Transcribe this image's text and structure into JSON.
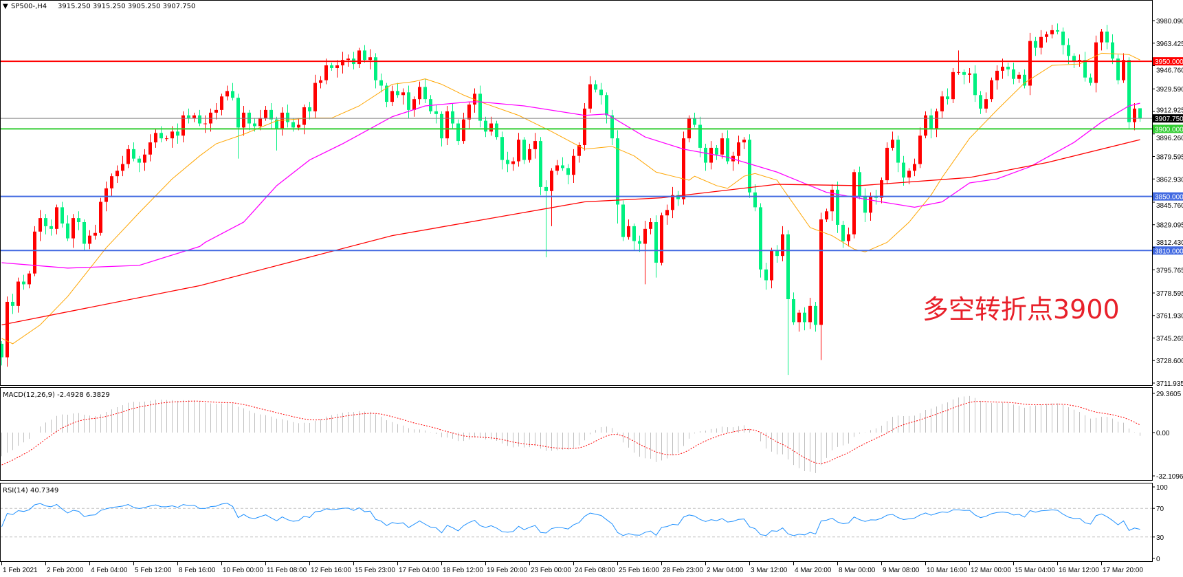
{
  "header": {
    "dropdown_icon": "triangle-down-icon",
    "symbol": "SP500-,H4",
    "ohlc_text": "3915.250 3915.250 3905.250 3907.750",
    "ohlc": [
      3915.25,
      3915.25,
      3905.25,
      3907.75
    ]
  },
  "annotation": "多空转折点3900",
  "colors": {
    "up_candle": "#ff0000",
    "down_candle": "#00f080",
    "ma_fast": "#ffa500",
    "ma_mid": "#ff00ff",
    "ma_slow": "#ff0000",
    "macd_hist": "#c0c0c0",
    "macd_signal": "#ff0000",
    "rsi": "#1e90ff",
    "annotation": "#e8202a"
  },
  "chart_data": {
    "type": "candlestick",
    "timeframe": "H4",
    "first_open": 3741,
    "closes": [
      3731,
      3772,
      3769,
      3787,
      3785,
      3793,
      3824,
      3834,
      3828,
      3826,
      3842,
      3830,
      3819,
      3834,
      3831,
      3815,
      3821,
      3823,
      3846,
      3856,
      3865,
      3869,
      3874,
      3885,
      3878,
      3875,
      3881,
      3890,
      3897,
      3893,
      3893,
      3898,
      3895,
      3910,
      3908,
      3910,
      3904,
      3904,
      3912,
      3914,
      3924,
      3928,
      3923,
      3901,
      3912,
      3904,
      3902,
      3908,
      3914,
      3907,
      3900,
      3912,
      3905,
      3901,
      3903,
      3916,
      3913,
      3934,
      3936,
      3947,
      3945,
      3947,
      3951,
      3952,
      3948,
      3958,
      3951,
      3953,
      3936,
      3932,
      3920,
      3928,
      3925,
      3927,
      3914,
      3922,
      3931,
      3922,
      3913,
      3911,
      3893,
      3913,
      3904,
      3891,
      3907,
      3918,
      3926,
      3906,
      3898,
      3904,
      3894,
      3877,
      3874,
      3876,
      3892,
      3877,
      3885,
      3891,
      3857,
      3854,
      3869,
      3873,
      3871,
      3866,
      3880,
      3888,
      3915,
      3933,
      3929,
      3925,
      3910,
      3893,
      3844,
      3820,
      3828,
      3817,
      3815,
      3826,
      3831,
      3801,
      3836,
      3840,
      3851,
      3848,
      3893,
      3908,
      3903,
      3886,
      3875,
      3886,
      3881,
      3893,
      3876,
      3880,
      3890,
      3892,
      3853,
      3842,
      3796,
      3788,
      3810,
      3806,
      3822,
      3774,
      3757,
      3764,
      3757,
      3769,
      3755,
      3833,
      3839,
      3855,
      3829,
      3817,
      3822,
      3868,
      3850,
      3838,
      3850,
      3849,
      3862,
      3886,
      3892,
      3875,
      3864,
      3869,
      3874,
      3895,
      3910,
      3900,
      3913,
      3924,
      3922,
      3942,
      3942,
      3940,
      3941,
      3925,
      3915,
      3922,
      3936,
      3943,
      3946,
      3944,
      3937,
      3940,
      3932,
      3965,
      3960,
      3968,
      3970,
      3973,
      3972,
      3962,
      3954,
      3950,
      3951,
      3938,
      3934,
      3964,
      3972,
      3964,
      3952,
      3936,
      3951,
      3905,
      3915,
      3907.75
    ],
    "wick_extremes": [
      {
        "bar": 0,
        "low": 3725
      },
      {
        "bar": 43,
        "low": 3878
      },
      {
        "bar": 50,
        "low": 3884
      },
      {
        "bar": 99,
        "low": 3805
      },
      {
        "bar": 100,
        "low": 3828
      },
      {
        "bar": 112,
        "low": 3830
      },
      {
        "bar": 117,
        "low": 3785
      },
      {
        "bar": 119,
        "low": 3790
      },
      {
        "bar": 138,
        "low": 3790
      },
      {
        "bar": 143,
        "low": 3718
      },
      {
        "bar": 149,
        "low": 3729
      },
      {
        "bar": 148,
        "low": 3750
      },
      {
        "bar": 174,
        "high": 3958
      },
      {
        "bar": 192,
        "high": 3978
      },
      {
        "bar": 201,
        "high": 3977
      },
      {
        "bar": 205,
        "low": 3900
      }
    ],
    "moving_averages": [
      {
        "role": "fast",
        "points": [
          [
            0,
            3745
          ],
          [
            2,
            3741
          ],
          [
            7,
            3755
          ],
          [
            12,
            3776
          ],
          [
            19,
            3812
          ],
          [
            25,
            3838
          ],
          [
            31,
            3863
          ],
          [
            36,
            3880
          ],
          [
            39,
            3889
          ],
          [
            44,
            3896
          ],
          [
            50,
            3906
          ],
          [
            56,
            3908
          ],
          [
            60,
            3908
          ],
          [
            65,
            3917
          ],
          [
            71,
            3933
          ],
          [
            75,
            3935
          ],
          [
            77,
            3937
          ],
          [
            80,
            3933
          ],
          [
            84,
            3925
          ],
          [
            87,
            3920
          ],
          [
            94,
            3910
          ],
          [
            100,
            3898
          ],
          [
            106,
            3885
          ],
          [
            111,
            3887
          ],
          [
            115,
            3880
          ],
          [
            119,
            3868
          ],
          [
            122,
            3865
          ],
          [
            125,
            3862
          ],
          [
            126,
            3865
          ],
          [
            130,
            3858
          ],
          [
            132,
            3856
          ],
          [
            135,
            3865
          ],
          [
            137,
            3867
          ],
          [
            141,
            3862
          ],
          [
            142,
            3856
          ],
          [
            147,
            3827
          ],
          [
            151,
            3821
          ],
          [
            155,
            3811
          ],
          [
            157,
            3809
          ],
          [
            161,
            3816
          ],
          [
            165,
            3831
          ],
          [
            169,
            3851
          ],
          [
            171,
            3864
          ],
          [
            176,
            3893
          ],
          [
            181,
            3914
          ],
          [
            186,
            3934
          ],
          [
            191,
            3947
          ],
          [
            196,
            3948
          ],
          [
            200,
            3956
          ],
          [
            205,
            3955
          ],
          [
            207,
            3951
          ]
        ]
      },
      {
        "role": "mid",
        "points": [
          [
            0,
            3801
          ],
          [
            12,
            3797
          ],
          [
            25,
            3799
          ],
          [
            36,
            3813
          ],
          [
            37,
            3816
          ],
          [
            44,
            3831
          ],
          [
            50,
            3858
          ],
          [
            56,
            3877
          ],
          [
            62,
            3889
          ],
          [
            71,
            3909
          ],
          [
            77,
            3917
          ],
          [
            85,
            3920
          ],
          [
            87,
            3920
          ],
          [
            95,
            3917
          ],
          [
            106,
            3910
          ],
          [
            110,
            3911
          ],
          [
            117,
            3894
          ],
          [
            124,
            3885
          ],
          [
            132,
            3879
          ],
          [
            141,
            3868
          ],
          [
            147,
            3858
          ],
          [
            150,
            3853
          ],
          [
            157,
            3848
          ],
          [
            166,
            3842
          ],
          [
            171,
            3846
          ],
          [
            176,
            3860
          ],
          [
            181,
            3863
          ],
          [
            187,
            3872
          ],
          [
            195,
            3890
          ],
          [
            200,
            3905
          ],
          [
            205,
            3917
          ],
          [
            207,
            3919
          ]
        ]
      },
      {
        "role": "slow",
        "points": [
          [
            0,
            3755
          ],
          [
            36,
            3784
          ],
          [
            71,
            3821
          ],
          [
            106,
            3846
          ],
          [
            120,
            3849
          ],
          [
            141,
            3859
          ],
          [
            156,
            3858
          ],
          [
            176,
            3864
          ],
          [
            190,
            3875
          ],
          [
            207,
            3892
          ]
        ]
      }
    ],
    "horizontal_levels": [
      {
        "price": 3950,
        "label": "3950.000",
        "color": "#ff0000",
        "tag_text": "#ffffff"
      },
      {
        "price": 3900,
        "label": "3900.000",
        "color": "#32cd32",
        "tag_text": "#ffffff"
      },
      {
        "price": 3850,
        "label": "3850.000",
        "color": "#4169e1",
        "tag_text": "#ffffff"
      },
      {
        "price": 3810,
        "label": "3810.000",
        "color": "#4169e1",
        "tag_text": "#ffffff"
      }
    ],
    "current_price": {
      "price": 3907.75,
      "label": "3907.750",
      "color": "#808080"
    },
    "price_axis": {
      "range": [
        3711.935,
        3980.09
      ],
      "ticks": [
        "3980.090",
        "3963.425",
        "3946.760",
        "3929.590",
        "3912.925",
        "3896.260",
        "3879.595",
        "3862.930",
        "3845.760",
        "3829.095",
        "3812.430",
        "3795.765",
        "3778.595",
        "3761.930",
        "3745.265",
        "3728.600",
        "3711.935"
      ]
    },
    "time_axis": {
      "bars_per_label": 8,
      "labels": [
        "1 Feb 2021",
        "2 Feb 20:00",
        "4 Feb 04:00",
        "5 Feb 12:00",
        "8 Feb 16:00",
        "10 Feb 00:00",
        "11 Feb 08:00",
        "12 Feb 16:00",
        "15 Feb 23:00",
        "17 Feb 04:00",
        "18 Feb 12:00",
        "19 Feb 20:00",
        "23 Feb 00:00",
        "24 Feb 08:00",
        "25 Feb 16:00",
        "28 Feb 23:00",
        "2 Mar 04:00",
        "3 Mar 12:00",
        "4 Mar 20:00",
        "8 Mar 00:00",
        "9 Mar 08:00",
        "10 Mar 16:00",
        "12 Mar 00:00",
        "15 Mar 04:00",
        "16 Mar 12:00",
        "17 Mar 20:00"
      ]
    },
    "macd": {
      "label": "MACD(12,26,9) -2.4928 6.3829",
      "range": [
        -32.1096,
        29.3605
      ],
      "ticks": [
        "29.3605",
        "0.00",
        "-32.1096"
      ]
    },
    "rsi": {
      "label": "RSI(14) 40.7349",
      "levels": [
        70,
        30
      ],
      "ticks": [
        "100",
        "70",
        "30",
        "0"
      ]
    }
  }
}
